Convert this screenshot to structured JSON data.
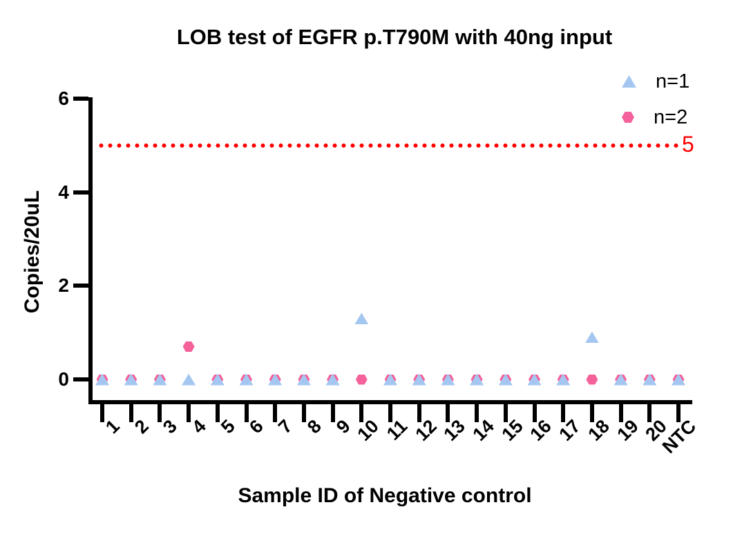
{
  "title": "LOB test of EGFR p.T790M with 40ng input",
  "legend": {
    "items": [
      {
        "label": "n=1",
        "marker": "triangle",
        "color": "#A4C7F1"
      },
      {
        "label": "n=2",
        "marker": "hexagon",
        "color": "#F4619B"
      }
    ]
  },
  "chart_data": {
    "type": "scatter",
    "title": "LOB test of EGFR p.T790M with 40ng input",
    "xlabel": "Sample ID of Negative control",
    "ylabel": "Copies/20uL",
    "categories": [
      "1",
      "2",
      "3",
      "4",
      "5",
      "6",
      "7",
      "8",
      "9",
      "10",
      "11",
      "12",
      "13",
      "14",
      "15",
      "16",
      "17",
      "18",
      "19",
      "20",
      "NTC"
    ],
    "series": [
      {
        "name": "n=1",
        "marker": "triangle",
        "color": "#A4C7F1",
        "values": [
          0,
          0,
          0,
          0,
          0,
          0,
          0,
          0,
          0,
          1.3,
          0,
          0,
          0,
          0,
          0,
          0,
          0,
          0.9,
          0,
          0,
          0
        ]
      },
      {
        "name": "n=2",
        "marker": "hexagon",
        "color": "#F4619B",
        "values": [
          0,
          0,
          0,
          0.7,
          0,
          0,
          0,
          0,
          0,
          0,
          0,
          0,
          0,
          0,
          0,
          0,
          0,
          0,
          0,
          0,
          0
        ]
      }
    ],
    "ylim": [
      0,
      6
    ],
    "yticks": [
      0,
      2,
      4,
      6
    ],
    "threshold": {
      "value": 5,
      "label": "5",
      "color": "#FF0000",
      "style": "dotted"
    },
    "legend_position": "top-right",
    "grid": false
  }
}
